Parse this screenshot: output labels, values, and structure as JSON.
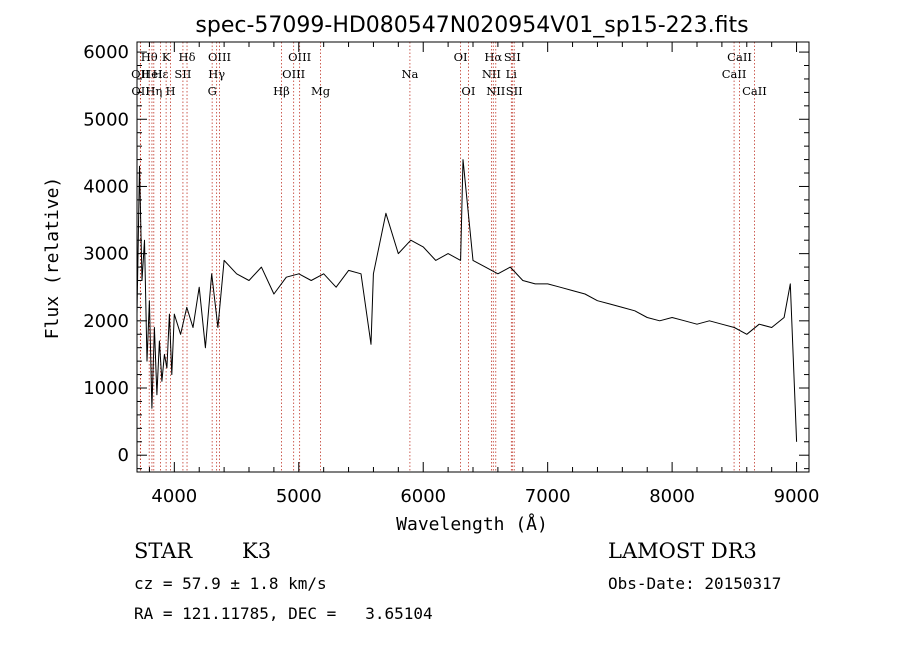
{
  "chart_data": {
    "type": "line",
    "title": "spec-57099-HD080547N020954V01_sp15-223.fits",
    "xlabel": "Wavelength (Å)",
    "ylabel": "Flux (relative)",
    "xlim": [
      3700,
      9100
    ],
    "ylim": [
      -250,
      6150
    ],
    "xticks": [
      4000,
      5000,
      6000,
      7000,
      8000,
      9000
    ],
    "yticks": [
      0,
      1000,
      2000,
      3000,
      4000,
      5000,
      6000
    ],
    "series": [
      {
        "name": "flux",
        "x": [
          3700,
          3720,
          3740,
          3760,
          3780,
          3800,
          3820,
          3840,
          3860,
          3880,
          3900,
          3920,
          3940,
          3960,
          3980,
          4000,
          4050,
          4100,
          4150,
          4200,
          4250,
          4300,
          4350,
          4400,
          4500,
          4600,
          4700,
          4800,
          4900,
          5000,
          5100,
          5200,
          5300,
          5400,
          5500,
          5580,
          5600,
          5700,
          5800,
          5900,
          6000,
          6100,
          6200,
          6300,
          6320,
          6400,
          6500,
          6600,
          6700,
          6800,
          6900,
          7000,
          7100,
          7200,
          7300,
          7400,
          7500,
          7600,
          7700,
          7800,
          7900,
          8000,
          8100,
          8200,
          8300,
          8400,
          8500,
          8600,
          8700,
          8800,
          8900,
          8950,
          9000
        ],
        "y": [
          2100,
          4300,
          2600,
          3200,
          1400,
          2300,
          700,
          1900,
          900,
          1700,
          1100,
          1500,
          1300,
          2100,
          1200,
          2100,
          1800,
          2200,
          1900,
          2500,
          1600,
          2700,
          1900,
          2900,
          2700,
          2600,
          2800,
          2400,
          2650,
          2700,
          2600,
          2700,
          2500,
          2750,
          2700,
          1650,
          2700,
          3600,
          3000,
          3200,
          3100,
          2900,
          3000,
          2900,
          4400,
          2900,
          2800,
          2700,
          2800,
          2600,
          2550,
          2550,
          2500,
          2450,
          2400,
          2300,
          2250,
          2200,
          2150,
          2050,
          2000,
          2050,
          2000,
          1950,
          2000,
          1950,
          1900,
          1800,
          1950,
          1900,
          2050,
          2550,
          200
        ]
      }
    ],
    "spectral_lines": [
      {
        "label": "Hθ",
        "x": 3798,
        "row": 1
      },
      {
        "label": "OII",
        "x": 3727,
        "row": 2
      },
      {
        "label": "OII",
        "x": 3729,
        "row": 3
      },
      {
        "label": "Hε",
        "x": 3889,
        "row": 2
      },
      {
        "label": "Hη",
        "x": 3835,
        "row": 3
      },
      {
        "label": "HeI",
        "x": 3820,
        "row": 2
      },
      {
        "label": "K",
        "x": 3934,
        "row": 1
      },
      {
        "label": "H",
        "x": 3969,
        "row": 3
      },
      {
        "label": "SII",
        "x": 4069,
        "row": 2
      },
      {
        "label": "Hδ",
        "x": 4102,
        "row": 1
      },
      {
        "label": "OIII",
        "x": 4363,
        "row": 1
      },
      {
        "label": "Hγ",
        "x": 4340,
        "row": 2
      },
      {
        "label": "G",
        "x": 4304,
        "row": 3
      },
      {
        "label": "Hβ",
        "x": 4861,
        "row": 3
      },
      {
        "label": "OIII",
        "x": 5007,
        "row": 1
      },
      {
        "label": "OIII",
        "x": 4959,
        "row": 2
      },
      {
        "label": "Mg",
        "x": 5175,
        "row": 3
      },
      {
        "label": "Na",
        "x": 5893,
        "row": 2
      },
      {
        "label": "OI",
        "x": 6300,
        "row": 1
      },
      {
        "label": "OI",
        "x": 6363,
        "row": 3
      },
      {
        "label": "Hα",
        "x": 6563,
        "row": 1
      },
      {
        "label": "NII",
        "x": 6548,
        "row": 2
      },
      {
        "label": "NII",
        "x": 6583,
        "row": 3
      },
      {
        "label": "SII",
        "x": 6716,
        "row": 1
      },
      {
        "label": "Li",
        "x": 6708,
        "row": 2
      },
      {
        "label": "SII",
        "x": 6731,
        "row": 3
      },
      {
        "label": "CaII",
        "x": 8542,
        "row": 1
      },
      {
        "label": "CaII",
        "x": 8498,
        "row": 2
      },
      {
        "label": "CaII",
        "x": 8662,
        "row": 3
      }
    ]
  },
  "info": {
    "class_label": "STAR",
    "subclass": "K3",
    "survey": "LAMOST DR3",
    "cz": "cz = 57.9 ± 1.8 km/s",
    "obs_date": "Obs-Date: 20150317",
    "coords": "RA = 121.11785, DEC =   3.65104"
  }
}
